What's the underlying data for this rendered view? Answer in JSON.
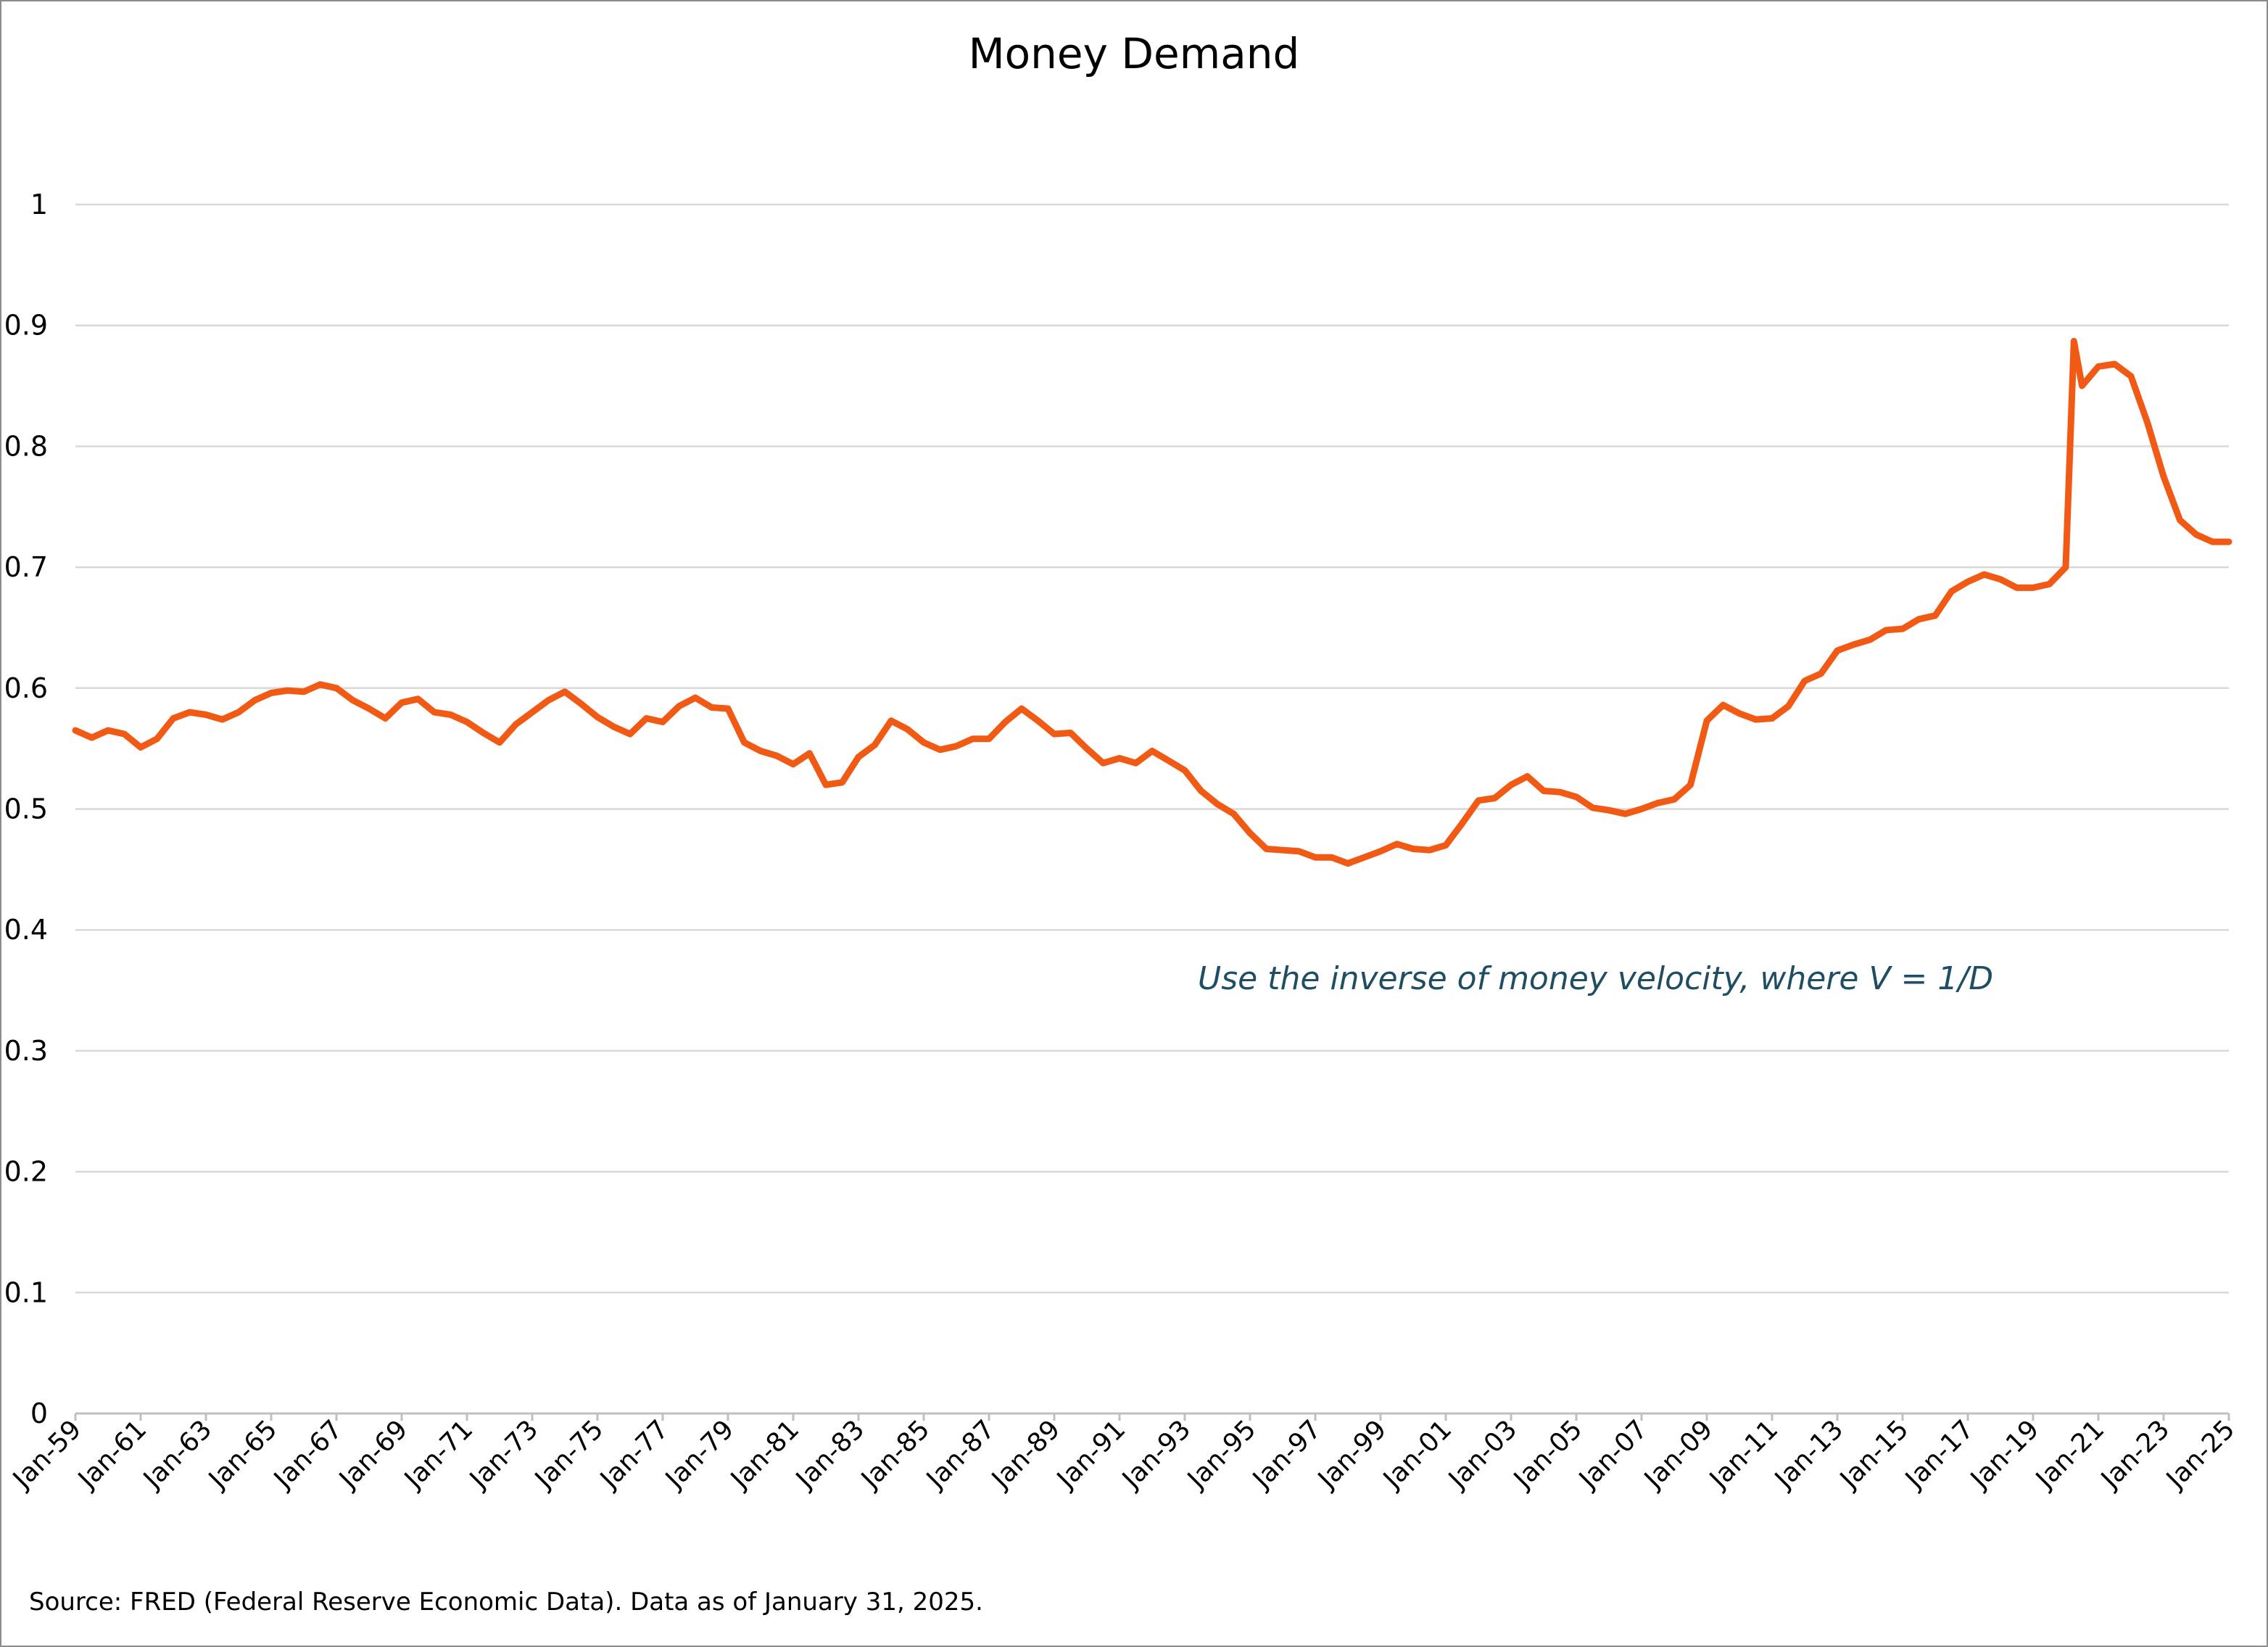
{
  "colors": {
    "line": "#f05a14",
    "annotation": "#1f4e63",
    "grid": "#d9d9d9",
    "border": "#8c8c8c"
  },
  "annotation": "Use the inverse of money velocity, where V = 1/D",
  "source": "Source: FRED (Federal Reserve Economic Data). Data as of January 31, 2025.",
  "chart_data": {
    "type": "line",
    "title": "Money Demand",
    "xlabel": "",
    "ylabel": "",
    "ylim": [
      0,
      1
    ],
    "yticks": [
      "0",
      "0.1",
      "0.2",
      "0.3",
      "0.4",
      "0.5",
      "0.6",
      "0.7",
      "0.8",
      "0.9",
      "1"
    ],
    "xticks": [
      "Jan-59",
      "Jan-61",
      "Jan-63",
      "Jan-65",
      "Jan-67",
      "Jan-69",
      "Jan-71",
      "Jan-73",
      "Jan-75",
      "Jan-77",
      "Jan-79",
      "Jan-81",
      "Jan-83",
      "Jan-85",
      "Jan-87",
      "Jan-89",
      "Jan-91",
      "Jan-93",
      "Jan-95",
      "Jan-97",
      "Jan-99",
      "Jan-01",
      "Jan-03",
      "Jan-05",
      "Jan-07",
      "Jan-09",
      "Jan-11",
      "Jan-13",
      "Jan-15",
      "Jan-17",
      "Jan-19",
      "Jan-21",
      "Jan-23",
      "Jan-25"
    ],
    "grid": true,
    "legend": "none",
    "series": [
      {
        "points": [
          [
            "1959-01",
            0.565
          ],
          [
            "1959-07",
            0.559
          ],
          [
            "1960-01",
            0.565
          ],
          [
            "1960-07",
            0.562
          ],
          [
            "1961-01",
            0.551
          ],
          [
            "1961-07",
            0.558
          ],
          [
            "1962-01",
            0.575
          ],
          [
            "1962-07",
            0.58
          ],
          [
            "1963-01",
            0.578
          ],
          [
            "1963-07",
            0.574
          ],
          [
            "1964-01",
            0.58
          ],
          [
            "1964-07",
            0.59
          ],
          [
            "1965-01",
            0.596
          ],
          [
            "1965-07",
            0.598
          ],
          [
            "1966-01",
            0.597
          ],
          [
            "1966-07",
            0.603
          ],
          [
            "1967-01",
            0.6
          ],
          [
            "1967-07",
            0.59
          ],
          [
            "1968-01",
            0.583
          ],
          [
            "1968-07",
            0.575
          ],
          [
            "1969-01",
            0.588
          ],
          [
            "1969-07",
            0.591
          ],
          [
            "1970-01",
            0.58
          ],
          [
            "1970-07",
            0.578
          ],
          [
            "1971-01",
            0.572
          ],
          [
            "1971-07",
            0.563
          ],
          [
            "1972-01",
            0.555
          ],
          [
            "1972-07",
            0.57
          ],
          [
            "1973-01",
            0.58
          ],
          [
            "1973-07",
            0.59
          ],
          [
            "1974-01",
            0.597
          ],
          [
            "1974-07",
            0.587
          ],
          [
            "1975-01",
            0.576
          ],
          [
            "1975-07",
            0.568
          ],
          [
            "1976-01",
            0.562
          ],
          [
            "1976-07",
            0.575
          ],
          [
            "1977-01",
            0.572
          ],
          [
            "1977-07",
            0.585
          ],
          [
            "1978-01",
            0.592
          ],
          [
            "1978-07",
            0.584
          ],
          [
            "1979-01",
            0.583
          ],
          [
            "1979-07",
            0.555
          ],
          [
            "1980-01",
            0.548
          ],
          [
            "1980-07",
            0.544
          ],
          [
            "1981-01",
            0.537
          ],
          [
            "1981-07",
            0.546
          ],
          [
            "1982-01",
            0.52
          ],
          [
            "1982-07",
            0.522
          ],
          [
            "1983-01",
            0.543
          ],
          [
            "1983-07",
            0.553
          ],
          [
            "1984-01",
            0.573
          ],
          [
            "1984-07",
            0.566
          ],
          [
            "1985-01",
            0.555
          ],
          [
            "1985-07",
            0.549
          ],
          [
            "1986-01",
            0.552
          ],
          [
            "1986-07",
            0.558
          ],
          [
            "1987-01",
            0.558
          ],
          [
            "1987-07",
            0.572
          ],
          [
            "1988-01",
            0.583
          ],
          [
            "1988-07",
            0.573
          ],
          [
            "1989-01",
            0.562
          ],
          [
            "1989-07",
            0.563
          ],
          [
            "1990-01",
            0.55
          ],
          [
            "1990-07",
            0.538
          ],
          [
            "1991-01",
            0.542
          ],
          [
            "1991-07",
            0.538
          ],
          [
            "1992-01",
            0.548
          ],
          [
            "1992-07",
            0.54
          ],
          [
            "1993-01",
            0.532
          ],
          [
            "1993-07",
            0.515
          ],
          [
            "1994-01",
            0.504
          ],
          [
            "1994-07",
            0.496
          ],
          [
            "1995-01",
            0.48
          ],
          [
            "1995-07",
            0.467
          ],
          [
            "1996-01",
            0.466
          ],
          [
            "1996-07",
            0.465
          ],
          [
            "1997-01",
            0.46
          ],
          [
            "1997-07",
            0.46
          ],
          [
            "1998-01",
            0.455
          ],
          [
            "1998-07",
            0.46
          ],
          [
            "1999-01",
            0.465
          ],
          [
            "1999-07",
            0.471
          ],
          [
            "2000-01",
            0.467
          ],
          [
            "2000-07",
            0.466
          ],
          [
            "2001-01",
            0.47
          ],
          [
            "2001-07",
            0.488
          ],
          [
            "2002-01",
            0.507
          ],
          [
            "2002-07",
            0.509
          ],
          [
            "2003-01",
            0.52
          ],
          [
            "2003-07",
            0.527
          ],
          [
            "2004-01",
            0.515
          ],
          [
            "2004-07",
            0.514
          ],
          [
            "2005-01",
            0.51
          ],
          [
            "2005-07",
            0.501
          ],
          [
            "2006-01",
            0.499
          ],
          [
            "2006-07",
            0.496
          ],
          [
            "2007-01",
            0.5
          ],
          [
            "2007-07",
            0.505
          ],
          [
            "2008-01",
            0.508
          ],
          [
            "2008-07",
            0.52
          ],
          [
            "2009-01",
            0.573
          ],
          [
            "2009-07",
            0.586
          ],
          [
            "2010-01",
            0.579
          ],
          [
            "2010-07",
            0.574
          ],
          [
            "2011-01",
            0.575
          ],
          [
            "2011-07",
            0.585
          ],
          [
            "2012-01",
            0.606
          ],
          [
            "2012-07",
            0.612
          ],
          [
            "2013-01",
            0.631
          ],
          [
            "2013-07",
            0.636
          ],
          [
            "2014-01",
            0.64
          ],
          [
            "2014-07",
            0.648
          ],
          [
            "2015-01",
            0.649
          ],
          [
            "2015-07",
            0.657
          ],
          [
            "2016-01",
            0.66
          ],
          [
            "2016-07",
            0.68
          ],
          [
            "2017-01",
            0.688
          ],
          [
            "2017-07",
            0.694
          ],
          [
            "2018-01",
            0.69
          ],
          [
            "2018-07",
            0.683
          ],
          [
            "2019-01",
            0.683
          ],
          [
            "2019-07",
            0.686
          ],
          [
            "2020-01",
            0.7
          ],
          [
            "2020-04",
            0.887
          ],
          [
            "2020-07",
            0.85
          ],
          [
            "2021-01",
            0.866
          ],
          [
            "2021-07",
            0.868
          ],
          [
            "2022-01",
            0.858
          ],
          [
            "2022-07",
            0.82
          ],
          [
            "2023-01",
            0.775
          ],
          [
            "2023-07",
            0.739
          ],
          [
            "2024-01",
            0.727
          ],
          [
            "2024-07",
            0.721
          ],
          [
            "2025-01",
            0.721
          ]
        ]
      }
    ]
  }
}
